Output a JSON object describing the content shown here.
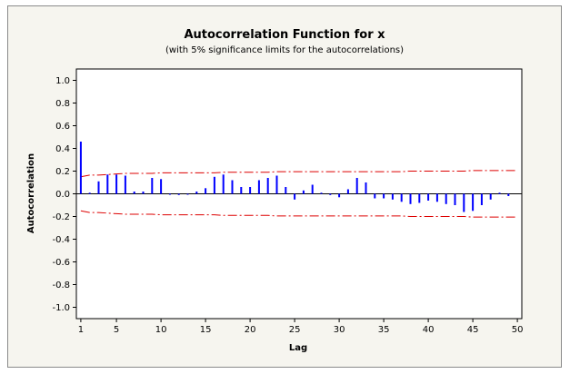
{
  "chart_data": {
    "type": "bar",
    "title": "Autocorrelation Function for x",
    "subtitle": "(with 5% significance limits for the autocorrelations)",
    "xlabel": "Lag",
    "ylabel": "Autocorrelation",
    "xlim": [
      0.5,
      50.5
    ],
    "ylim": [
      -1.1,
      1.1
    ],
    "xticks": [
      1,
      5,
      10,
      15,
      20,
      25,
      30,
      35,
      40,
      45,
      50
    ],
    "yticks": [
      "1.0",
      "0.8",
      "0.6",
      "0.4",
      "0.2",
      "0.0",
      "-0.2",
      "-0.4",
      "-0.6",
      "-0.8",
      "-1.0"
    ],
    "series": [
      {
        "lags": [
          1,
          2,
          3,
          4,
          5,
          6,
          7,
          8,
          9,
          10,
          11,
          12,
          13,
          14,
          15,
          16,
          17,
          18,
          19,
          20,
          21,
          22,
          23,
          24,
          25,
          26,
          27,
          28,
          29,
          30,
          31,
          32,
          33,
          34,
          35,
          36,
          37,
          38,
          39,
          40,
          41,
          42,
          43,
          44,
          45,
          46,
          47,
          48,
          49
        ],
        "values": [
          0.46,
          0.01,
          0.11,
          0.17,
          0.17,
          0.16,
          0.02,
          0.02,
          0.14,
          0.13,
          0.0,
          -0.01,
          0.0,
          0.02,
          0.05,
          0.15,
          0.17,
          0.12,
          0.06,
          0.06,
          0.12,
          0.14,
          0.16,
          0.06,
          -0.05,
          0.03,
          0.08,
          0.01,
          -0.01,
          -0.03,
          0.04,
          0.14,
          0.1,
          -0.04,
          -0.04,
          -0.05,
          -0.07,
          -0.09,
          -0.08,
          -0.06,
          -0.07,
          -0.09,
          -0.1,
          -0.16,
          -0.15,
          -0.1,
          -0.05,
          0.01,
          -0.02
        ]
      }
    ],
    "significance_limits": {
      "lags": [
        1,
        2,
        3,
        4,
        5,
        6,
        7,
        8,
        9,
        10,
        11,
        12,
        13,
        14,
        15,
        16,
        17,
        18,
        19,
        20,
        21,
        22,
        23,
        24,
        25,
        26,
        27,
        28,
        29,
        30,
        31,
        32,
        33,
        34,
        35,
        36,
        37,
        38,
        39,
        40,
        41,
        42,
        43,
        44,
        45,
        46,
        47,
        48,
        49,
        50
      ],
      "upper": [
        0.15,
        0.165,
        0.165,
        0.17,
        0.175,
        0.18,
        0.18,
        0.18,
        0.18,
        0.185,
        0.185,
        0.185,
        0.185,
        0.185,
        0.185,
        0.185,
        0.19,
        0.19,
        0.19,
        0.19,
        0.19,
        0.19,
        0.195,
        0.195,
        0.195,
        0.195,
        0.195,
        0.195,
        0.195,
        0.195,
        0.195,
        0.195,
        0.195,
        0.195,
        0.195,
        0.195,
        0.195,
        0.2,
        0.2,
        0.2,
        0.2,
        0.2,
        0.2,
        0.2,
        0.205,
        0.205,
        0.205,
        0.205,
        0.205,
        0.205
      ]
    },
    "grid": false,
    "colors": {
      "bars": "#0000ff",
      "limits": "#dd0000",
      "zero_line": "#000000",
      "panel_background": "#f6f5ef",
      "plot_background": "#ffffff"
    }
  }
}
